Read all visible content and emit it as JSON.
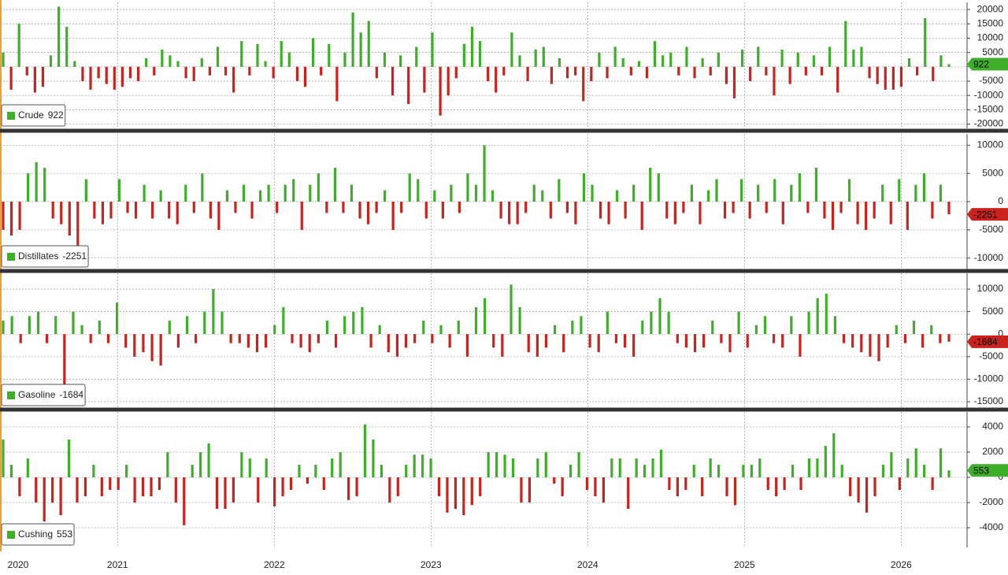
{
  "chart_data": [
    {
      "type": "bar",
      "name": "Crude",
      "positive_color": "#3fae2a",
      "negative_color": "#c8231f",
      "ylim": [
        -21500,
        22500
      ],
      "yticks": [
        -20000,
        -15000,
        -10000,
        -5000,
        0,
        5000,
        10000,
        15000,
        20000
      ],
      "values": [
        5000,
        -8000,
        15000,
        -3000,
        -9000,
        -7000,
        4000,
        21000,
        14000,
        2000,
        -5000,
        -8000,
        -4000,
        -6000,
        -8000,
        -7000,
        -4000,
        -5000,
        3000,
        -3000,
        6000,
        4000,
        2000,
        -4000,
        -5000,
        3000,
        -3000,
        7000,
        -3000,
        -9000,
        9000,
        -3000,
        8000,
        2000,
        -4000,
        9000,
        5000,
        -5000,
        -7000,
        10000,
        -3000,
        8000,
        -12000,
        5000,
        19000,
        12000,
        16000,
        -4000,
        5000,
        -10000,
        4000,
        -13000,
        7000,
        -9000,
        12000,
        -17000,
        -10000,
        -4000,
        8000,
        14000,
        9000,
        -5000,
        -9000,
        -3000,
        12000,
        4000,
        -5000,
        6000,
        7000,
        -6000,
        3000,
        -4000,
        -3000,
        -12000,
        -5000,
        5000,
        -4000,
        7000,
        3000,
        -3000,
        2000,
        -4000,
        9000,
        4000,
        5000,
        -3000,
        7000,
        -4000,
        3000,
        -3000,
        5000,
        -6000,
        -11000,
        6000,
        -5000,
        7000,
        -3000,
        -10000,
        6000,
        -6000,
        5000,
        -3000,
        4000,
        -3000,
        7000,
        -9000,
        16000,
        6000,
        7000,
        -4000,
        -6000,
        -8000,
        -8000,
        -7000,
        3000,
        -3000,
        17000,
        -5000,
        4000,
        922
      ]
    },
    {
      "type": "bar",
      "name": "Distillates",
      "positive_color": "#3fae2a",
      "negative_color": "#c8231f",
      "ylim": [
        -12000,
        12000
      ],
      "yticks": [
        -10000,
        -5000,
        0,
        5000,
        10000
      ],
      "values": [
        -5000,
        -6000,
        -5000,
        5000,
        7000,
        6000,
        -3000,
        -4000,
        -6000,
        -10000,
        4000,
        -3000,
        -4000,
        -3000,
        4000,
        -2000,
        -3000,
        3000,
        -3000,
        2000,
        -3000,
        -4000,
        3000,
        -2000,
        5000,
        -3000,
        -5000,
        2000,
        -2000,
        3000,
        -3000,
        2000,
        3000,
        -2000,
        3000,
        4000,
        -5000,
        3000,
        5000,
        -2000,
        6000,
        -2000,
        3000,
        -3000,
        -4000,
        -2000,
        2000,
        -5000,
        -2000,
        5000,
        4000,
        -3000,
        2000,
        -3000,
        3000,
        -2000,
        5000,
        3000,
        10000,
        2000,
        -3000,
        -4000,
        -4000,
        -2000,
        3000,
        2000,
        -3000,
        4000,
        -2000,
        -4000,
        5000,
        3000,
        -3000,
        -4000,
        2000,
        -3000,
        3000,
        -5000,
        6000,
        5000,
        -3000,
        -4000,
        -2000,
        3000,
        -4000,
        2000,
        4000,
        -3000,
        -2000,
        4000,
        -3000,
        3000,
        -2000,
        4000,
        -4000,
        3000,
        5000,
        -2000,
        6000,
        -3000,
        -5000,
        -2000,
        4000,
        -4000,
        -5000,
        -3000,
        3000,
        -4000,
        4000,
        -5000,
        3000,
        5000,
        -3000,
        3000,
        -2251
      ]
    },
    {
      "type": "bar",
      "name": "Gasoline",
      "positive_color": "#3fae2a",
      "negative_color": "#c8231f",
      "ylim": [
        -16400,
        13500
      ],
      "yticks": [
        -15000,
        -10000,
        -5000,
        0,
        5000,
        10000
      ],
      "values": [
        3000,
        4000,
        -2000,
        4000,
        5000,
        -2000,
        4000,
        -12000,
        5000,
        2000,
        -2000,
        3000,
        -2000,
        7000,
        -3000,
        -5000,
        -4000,
        -6000,
        -7000,
        3000,
        -3000,
        4000,
        -2000,
        5000,
        10000,
        5000,
        -2000,
        -2000,
        -3000,
        -4000,
        -3000,
        2000,
        6000,
        -2000,
        -3000,
        -4000,
        -2000,
        3000,
        -3000,
        4000,
        5000,
        6000,
        -3000,
        2000,
        -4000,
        -5000,
        -3000,
        -2000,
        3000,
        -2000,
        2000,
        -3000,
        3000,
        -5000,
        6000,
        8000,
        -3000,
        -5000,
        11000,
        6000,
        -4000,
        -5000,
        -3000,
        2000,
        -4000,
        3000,
        4000,
        -3000,
        -4000,
        5000,
        -2000,
        -3000,
        -5000,
        3000,
        5000,
        8000,
        5000,
        -2000,
        -3000,
        -4000,
        -3000,
        3000,
        -2000,
        -4000,
        5000,
        -3000,
        2000,
        4000,
        -2000,
        -3000,
        4000,
        -5000,
        5000,
        8000,
        9000,
        4000,
        -2000,
        -3000,
        -4000,
        -5000,
        -6000,
        -3000,
        2000,
        -2000,
        3000,
        -3000,
        2000,
        -2000,
        -1684
      ]
    },
    {
      "type": "bar",
      "name": "Cushing",
      "positive_color": "#3fae2a",
      "negative_color": "#c8231f",
      "ylim": [
        -5560,
        5190
      ],
      "yticks": [
        -4000,
        -2000,
        0,
        2000,
        4000
      ],
      "xlim": [
        2020.25,
        2026.42
      ],
      "xticks": [
        2020,
        2021,
        2022,
        2023,
        2024,
        2025,
        2026
      ],
      "values": [
        3000,
        1000,
        -1500,
        1500,
        -2000,
        -3500,
        -2000,
        -3000,
        3000,
        -2000,
        -1500,
        1000,
        -1500,
        -1000,
        -1000,
        1000,
        -2000,
        -1500,
        -1500,
        -1000,
        2000,
        -2000,
        -3800,
        1000,
        2000,
        2700,
        -2500,
        -2500,
        -2000,
        2000,
        1500,
        -2000,
        1500,
        -2300,
        -1500,
        -1000,
        1000,
        -500,
        1000,
        -1000,
        1500,
        2000,
        -1800,
        -1500,
        4200,
        3000,
        1000,
        -2000,
        -1500,
        1000,
        1800,
        1800,
        1500,
        -1500,
        -2800,
        -2500,
        -3000,
        -2200,
        -1500,
        2000,
        2000,
        1800,
        1500,
        -2000,
        -2000,
        1500,
        2000,
        -500,
        -1500,
        1000,
        2000,
        -1000,
        -1500,
        -2000,
        1500,
        1500,
        -2500,
        1500,
        1000,
        1500,
        2200,
        -1000,
        -1500,
        -1000,
        1000,
        -1500,
        1500,
        1000,
        -1500,
        -2200,
        1000,
        1000,
        1500,
        -1000,
        -1500,
        -1000,
        1000,
        -1000,
        1500,
        1500,
        2500,
        3500,
        1000,
        -1500,
        -2000,
        -2800,
        -1500,
        1000,
        2000,
        -1000,
        1500,
        2300,
        1000,
        -1000,
        2300,
        553
      ]
    }
  ]
}
